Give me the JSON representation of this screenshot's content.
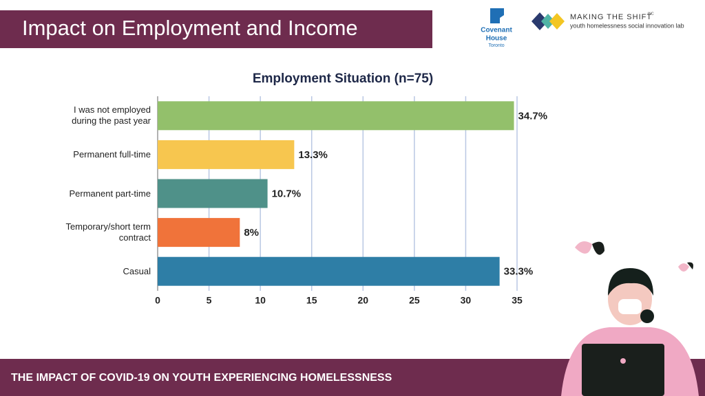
{
  "header": {
    "title": "Impact on Employment and Income"
  },
  "footer": {
    "text": "THE IMPACT OF COVID-19 ON YOUTH EXPERIENCING HOMELESSNESS"
  },
  "logos": [
    {
      "name": "Covenant",
      "line2": "House",
      "line3": "Toronto"
    },
    {
      "name": "MAKING THE SHIFT",
      "suffix": "INC",
      "tagline": "youth homelessness social innovation lab"
    }
  ],
  "chart_data": {
    "type": "hbar",
    "title": "Employment Situation (n=75)",
    "categories": [
      "I was not employed during the past year",
      "Permanent full-time",
      "Permanent part-time",
      "Temporary/short term contract",
      "Casual"
    ],
    "values": [
      34.7,
      13.3,
      10.7,
      8,
      33.3
    ],
    "value_labels": [
      "34.7%",
      "13.3%",
      "10.7%",
      "8%",
      "33.3%"
    ],
    "colors": [
      "#93c06b",
      "#f7c64f",
      "#4f9189",
      "#f0733a",
      "#2e7ea6"
    ],
    "xlim": [
      0,
      35
    ],
    "xticks": [
      0,
      5,
      10,
      15,
      20,
      25,
      30,
      35
    ],
    "grid": true
  }
}
